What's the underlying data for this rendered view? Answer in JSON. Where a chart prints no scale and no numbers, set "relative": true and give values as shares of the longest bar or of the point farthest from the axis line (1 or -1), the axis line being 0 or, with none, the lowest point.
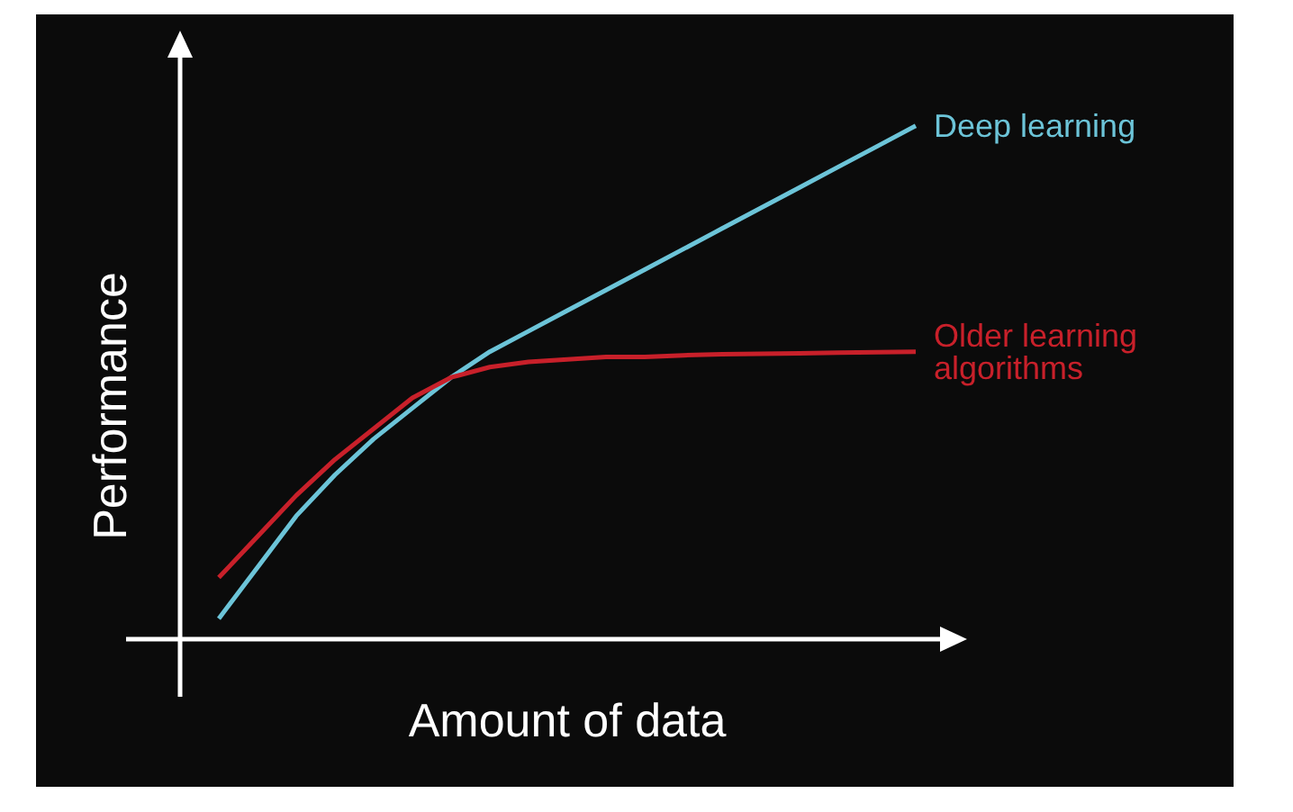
{
  "chart_data": {
    "type": "line",
    "relative": true,
    "xlabel": "Amount of data",
    "ylabel": "Performance",
    "marker": "none",
    "categories": [
      null,
      null,
      null,
      null,
      null,
      null,
      null,
      null,
      null,
      null,
      null,
      null,
      null,
      null,
      null,
      null,
      null,
      null,
      null,
      null,
      null
    ],
    "series": [
      {
        "name": "Deep learning",
        "color": "#6cc4d8",
        "values": [
          null,
          0.04,
          0.14,
          0.24,
          0.32,
          0.39,
          0.45,
          0.51,
          0.56,
          0.6,
          0.64,
          0.68,
          0.72,
          0.76,
          0.8,
          0.84,
          0.88,
          0.92,
          0.96,
          1,
          null
        ]
      },
      {
        "name": "Older learning algorithms",
        "color": "#c8202a",
        "values": [
          null,
          0.12,
          0.2,
          0.28,
          0.35,
          0.41,
          0.47,
          0.51,
          0.53,
          0.54,
          0.545,
          0.55,
          0.55,
          0.553,
          0.555,
          0.556,
          0.557,
          0.558,
          0.559,
          0.56,
          null
        ]
      }
    ]
  }
}
